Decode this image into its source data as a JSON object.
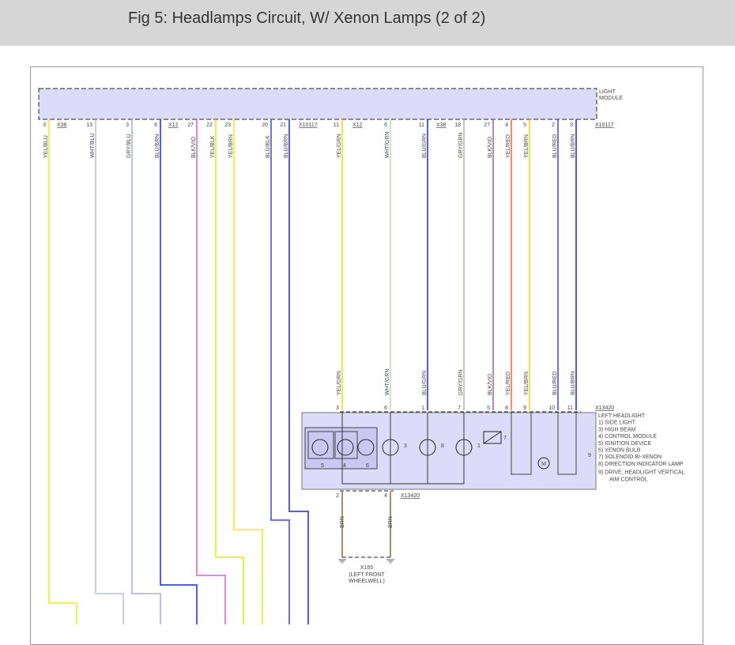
{
  "title": "Fig 5: Headlamps Circuit, W/ Xenon Lamps (2 of 2)",
  "light_module": {
    "label": [
      "LIGHT",
      "MODULE"
    ],
    "connectors": [
      "X38",
      "X12",
      "X10117",
      "X12",
      "X38",
      "X10117"
    ]
  },
  "colors": {
    "YEL": "#f0f000",
    "BLU": "#2020ff",
    "WHT": "#c8c8ff",
    "GRY": "#b0b0e0",
    "BLK": "#555555",
    "VIO": "#ff80ff",
    "BRN": "#8b6a20",
    "GRN": "#a0d0a0",
    "RED": "#ff4040",
    "module_fill": "#dcdcfa"
  },
  "left_wires": [
    {
      "pin": "3",
      "label": "YEL/BLU",
      "c": "#f0f000"
    },
    {
      "pin": "13",
      "label": "WHT/BLU",
      "c": "#b8b8f0"
    },
    {
      "pin": "3",
      "label": "GRY/BLU",
      "c": "#a8a8e0"
    },
    {
      "pin": "6",
      "label": "BLU/BRN",
      "c": "#2020ff"
    },
    {
      "pin": "27",
      "label": "BLK/VIO",
      "c": "#d060d0"
    },
    {
      "pin": "22",
      "label": "YEL/BLK",
      "c": "#e8e800"
    },
    {
      "pin": "23",
      "label": "YEL/BRN",
      "c": "#f0f000"
    },
    {
      "pin": "20",
      "label": "BLU/BLK",
      "c": "#4040e0"
    },
    {
      "pin": "21",
      "label": "BLU/BRN",
      "c": "#2020ff"
    }
  ],
  "right_wires": [
    {
      "pin": "11",
      "label": "YEL/GRN",
      "c": "#e0e000",
      "hpin": "3"
    },
    {
      "pin": "6",
      "label": "WHT/GRN",
      "c": "#b0e0b0",
      "hpin": "6"
    },
    {
      "pin": "11",
      "label": "BLU/GRN",
      "c": "#2020ff",
      "hpin": "1"
    },
    {
      "pin": "18",
      "label": "GRY/GRN",
      "c": "#a0c0a0",
      "hpin": "7"
    },
    {
      "pin": "27",
      "label": "BLK/VIO",
      "c": "#a060a0",
      "hpin": "5"
    },
    {
      "pin": "4",
      "label": "YEL/RED",
      "c": "#ff6030",
      "hpin": "8"
    },
    {
      "pin": "5",
      "label": "YEL/BRN",
      "c": "#e0e000",
      "hpin": "9"
    },
    {
      "pin": "2",
      "label": "BLU/RED",
      "c": "#4040ff",
      "hpin": "10"
    },
    {
      "pin": "3",
      "label": "BLU/BRN",
      "c": "#2020d0",
      "hpin": "11"
    }
  ],
  "headlight": {
    "connector": "X13420",
    "legend": [
      "LEFT HEADLIGHT",
      "1) SIDE LIGHT",
      "3) HIGH BEAM",
      "4) CONTROL MODULE",
      "5) IGNITION DEVICE",
      "6) XENON BULB",
      "7) SOLENOID BI-XENON",
      "8) DIRECTION INDICATOR LAMP",
      "9) DRIVE, HEADLIGHT VERTICAL",
      "AIM CONTROL"
    ],
    "components": [
      "5",
      "4",
      "6",
      "3",
      "8",
      "1",
      "7",
      "9"
    ],
    "motor": "M",
    "ground_pins": [
      "2",
      "4"
    ],
    "ground_wire": "BRN"
  },
  "ground": {
    "name": "X165",
    "desc": [
      "(LEFT FRONT",
      "WHEELWELL)"
    ]
  }
}
